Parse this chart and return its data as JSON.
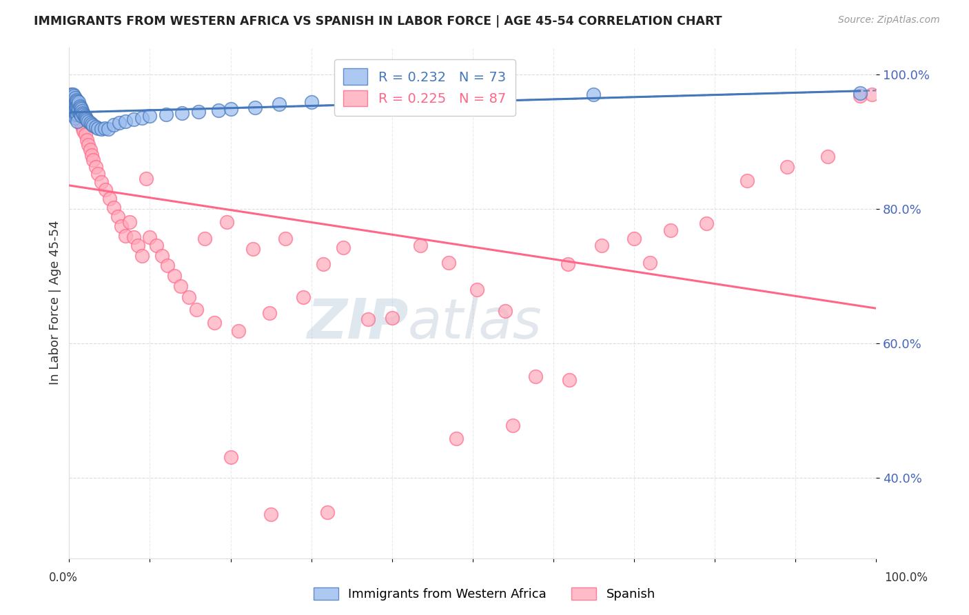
{
  "title": "IMMIGRANTS FROM WESTERN AFRICA VS SPANISH IN LABOR FORCE | AGE 45-54 CORRELATION CHART",
  "source": "Source: ZipAtlas.com",
  "ylabel": "In Labor Force | Age 45-54",
  "xlim": [
    0.0,
    1.0
  ],
  "ylim": [
    0.28,
    1.04
  ],
  "yticks": [
    0.4,
    0.6,
    0.8,
    1.0
  ],
  "ytick_labels": [
    "40.0%",
    "60.0%",
    "80.0%",
    "100.0%"
  ],
  "legend_r1": "R = 0.232",
  "legend_n1": "N = 73",
  "legend_r2": "R = 0.225",
  "legend_n2": "N = 87",
  "color_blue_fill": "#99BBEE",
  "color_blue_edge": "#4477BB",
  "color_pink_fill": "#FFAABB",
  "color_pink_edge": "#FF6688",
  "color_blue_line": "#4477BB",
  "color_pink_line": "#FF6688",
  "color_axis_tick": "#4466BB",
  "title_color": "#222222",
  "watermark_color": "#C8D8EE",
  "background_color": "#FFFFFF",
  "grid_color": "#CCCCCC",
  "blue_scatter_x": [
    0.002,
    0.003,
    0.003,
    0.004,
    0.004,
    0.004,
    0.005,
    0.005,
    0.005,
    0.005,
    0.006,
    0.006,
    0.006,
    0.007,
    0.007,
    0.007,
    0.007,
    0.008,
    0.008,
    0.008,
    0.009,
    0.009,
    0.009,
    0.01,
    0.01,
    0.01,
    0.01,
    0.011,
    0.011,
    0.012,
    0.012,
    0.013,
    0.013,
    0.014,
    0.014,
    0.015,
    0.015,
    0.016,
    0.017,
    0.018,
    0.019,
    0.02,
    0.021,
    0.022,
    0.024,
    0.026,
    0.028,
    0.03,
    0.033,
    0.036,
    0.04,
    0.044,
    0.048,
    0.055,
    0.062,
    0.07,
    0.08,
    0.09,
    0.1,
    0.12,
    0.14,
    0.16,
    0.185,
    0.2,
    0.23,
    0.26,
    0.3,
    0.34,
    0.38,
    0.44,
    0.52,
    0.65,
    0.98
  ],
  "blue_scatter_y": [
    0.96,
    0.97,
    0.95,
    0.965,
    0.955,
    0.945,
    0.97,
    0.96,
    0.95,
    0.94,
    0.968,
    0.958,
    0.948,
    0.965,
    0.955,
    0.945,
    0.935,
    0.96,
    0.95,
    0.94,
    0.962,
    0.952,
    0.942,
    0.96,
    0.95,
    0.94,
    0.93,
    0.955,
    0.945,
    0.958,
    0.948,
    0.952,
    0.942,
    0.95,
    0.94,
    0.948,
    0.938,
    0.945,
    0.942,
    0.94,
    0.938,
    0.936,
    0.934,
    0.932,
    0.93,
    0.928,
    0.926,
    0.924,
    0.922,
    0.92,
    0.918,
    0.92,
    0.918,
    0.925,
    0.928,
    0.93,
    0.933,
    0.935,
    0.938,
    0.94,
    0.942,
    0.944,
    0.946,
    0.948,
    0.95,
    0.955,
    0.958,
    0.96,
    0.962,
    0.965,
    0.968,
    0.97,
    0.972
  ],
  "pink_scatter_x": [
    0.002,
    0.003,
    0.003,
    0.004,
    0.004,
    0.005,
    0.005,
    0.005,
    0.006,
    0.006,
    0.007,
    0.007,
    0.008,
    0.008,
    0.009,
    0.009,
    0.01,
    0.01,
    0.011,
    0.012,
    0.013,
    0.014,
    0.015,
    0.017,
    0.018,
    0.02,
    0.022,
    0.024,
    0.026,
    0.028,
    0.03,
    0.033,
    0.036,
    0.04,
    0.045,
    0.05,
    0.055,
    0.06,
    0.065,
    0.07,
    0.075,
    0.08,
    0.085,
    0.09,
    0.095,
    0.1,
    0.108,
    0.115,
    0.122,
    0.13,
    0.138,
    0.148,
    0.158,
    0.168,
    0.18,
    0.195,
    0.21,
    0.228,
    0.248,
    0.268,
    0.29,
    0.315,
    0.34,
    0.37,
    0.4,
    0.435,
    0.47,
    0.505,
    0.54,
    0.578,
    0.618,
    0.66,
    0.7,
    0.745,
    0.79,
    0.84,
    0.89,
    0.94,
    0.98,
    0.995,
    0.2,
    0.25,
    0.32,
    0.48,
    0.55,
    0.62,
    0.72
  ],
  "pink_scatter_y": [
    0.97,
    0.965,
    0.955,
    0.96,
    0.95,
    0.965,
    0.955,
    0.945,
    0.96,
    0.95,
    0.955,
    0.945,
    0.95,
    0.94,
    0.948,
    0.938,
    0.945,
    0.935,
    0.94,
    0.935,
    0.93,
    0.928,
    0.925,
    0.92,
    0.915,
    0.91,
    0.902,
    0.895,
    0.888,
    0.88,
    0.872,
    0.862,
    0.852,
    0.84,
    0.828,
    0.815,
    0.802,
    0.788,
    0.774,
    0.76,
    0.78,
    0.758,
    0.745,
    0.73,
    0.845,
    0.758,
    0.745,
    0.73,
    0.715,
    0.7,
    0.685,
    0.668,
    0.65,
    0.755,
    0.63,
    0.78,
    0.618,
    0.74,
    0.645,
    0.755,
    0.668,
    0.718,
    0.742,
    0.635,
    0.638,
    0.745,
    0.72,
    0.68,
    0.648,
    0.55,
    0.718,
    0.745,
    0.755,
    0.768,
    0.778,
    0.842,
    0.862,
    0.878,
    0.968,
    0.97,
    0.43,
    0.345,
    0.348,
    0.458,
    0.478,
    0.545,
    0.72
  ]
}
